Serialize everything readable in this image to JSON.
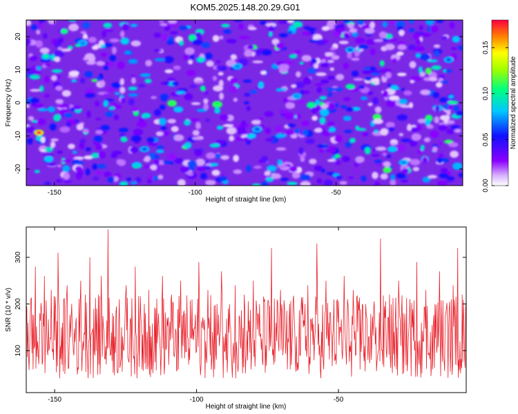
{
  "title": "KOM5.2025.148.20.29.G01",
  "chart_data": [
    {
      "type": "heatmap",
      "xlabel": "Height of straight line (km)",
      "ylabel": "Frequency (Hz)",
      "xlim": [
        -160,
        -5
      ],
      "ylim": [
        -25,
        25
      ],
      "x_ticks": [
        -150,
        -100,
        -50
      ],
      "x_tick_labels": [
        "-150",
        "-100",
        "-50"
      ],
      "y_ticks": [
        -20,
        -10,
        0,
        10,
        20
      ],
      "y_tick_labels": [
        "-20",
        "-10",
        "0",
        "10",
        "20"
      ],
      "colorbar": {
        "label": "Normalized spectral amplitude",
        "range": [
          0,
          0.18
        ],
        "ticks": [
          0.0,
          0.05,
          0.1,
          0.15
        ],
        "tick_labels": [
          "0.00",
          "0.05",
          "0.10",
          "0.15"
        ],
        "colors": [
          "#ffffff",
          "#8a00ff",
          "#1010ff",
          "#00c8ff",
          "#00ff80",
          "#a0ff00",
          "#ffff00",
          "#ff8000",
          "#ff0040"
        ]
      },
      "hotspots": [
        {
          "x": -155.5,
          "y": -9,
          "value": 0.18
        },
        {
          "x": -153,
          "y": 14,
          "value": 0.1
        },
        {
          "x": -98,
          "y": 13,
          "value": 0.1
        },
        {
          "x": -106,
          "y": -2,
          "value": 0.08
        },
        {
          "x": -152,
          "y": -17,
          "value": 0.08
        },
        {
          "x": -85,
          "y": 11,
          "value": 0.07
        },
        {
          "x": -64,
          "y": 2,
          "value": 0.07
        },
        {
          "x": -30,
          "y": -14,
          "value": 0.08
        },
        {
          "x": -26,
          "y": -18,
          "value": 0.07
        },
        {
          "x": -140,
          "y": 18,
          "value": 0.07
        },
        {
          "x": -118,
          "y": -14,
          "value": 0.06
        },
        {
          "x": -45,
          "y": 16,
          "value": 0.06
        },
        {
          "x": -10,
          "y": 13,
          "value": 0.06
        },
        {
          "x": -78,
          "y": -8,
          "value": 0.06
        }
      ]
    },
    {
      "type": "line",
      "xlabel": "Height of straight line (km)",
      "ylabel": "SNR (10 * v/v)",
      "xlim": [
        -160,
        -5
      ],
      "ylim": [
        10,
        365
      ],
      "x_ticks": [
        -150,
        -100,
        -50
      ],
      "x_tick_labels": [
        "-150",
        "-100",
        "-50"
      ],
      "y_ticks": [
        100,
        200,
        300
      ],
      "y_tick_labels": [
        "100",
        "200",
        "300"
      ],
      "series": [
        {
          "color": "#e8202a",
          "values": [
            150,
            90,
            210,
            60,
            280,
            120,
            180,
            70,
            260,
            140,
            100,
            230,
            80,
            190,
            310,
            110,
            160,
            50,
            240,
            130,
            200,
            90,
            170,
            60,
            250,
            120,
            220,
            80,
            300,
            140,
            100,
            190,
            70,
            260,
            150,
            110,
            360,
            90,
            180,
            130,
            60,
            210,
            150,
            100,
            240,
            80,
            170,
            120,
            280,
            90,
            140,
            60,
            200,
            110,
            230,
            130,
            80,
            190,
            150,
            100,
            260,
            70,
            170,
            120,
            220,
            90,
            140,
            60,
            250,
            110,
            180,
            130,
            80,
            210,
            150,
            100,
            290,
            70,
            160,
            120,
            230,
            90,
            140,
            60,
            200,
            110,
            270,
            130,
            80,
            190,
            150,
            100,
            240,
            70,
            170,
            120,
            220,
            90,
            140,
            60,
            250,
            110,
            180,
            130,
            80,
            210,
            150,
            100,
            320,
            70,
            160,
            120,
            230,
            90,
            140,
            60,
            200,
            110,
            170,
            130,
            80,
            190,
            150,
            100,
            240,
            70,
            170,
            120,
            330,
            90,
            140,
            60,
            250,
            110,
            180,
            130,
            80,
            210,
            150,
            100,
            260,
            70,
            160,
            120,
            230,
            90,
            140,
            60,
            200,
            110,
            170,
            130,
            80,
            190,
            150,
            100,
            340,
            70,
            170,
            120,
            220,
            90,
            140,
            60,
            250,
            110,
            180,
            130,
            80,
            210,
            150,
            100,
            290,
            70,
            160,
            120,
            230,
            90,
            140,
            60,
            200,
            110,
            270,
            130,
            80,
            190,
            150,
            100,
            240,
            70,
            320,
            120,
            220,
            90
          ]
        }
      ]
    }
  ]
}
